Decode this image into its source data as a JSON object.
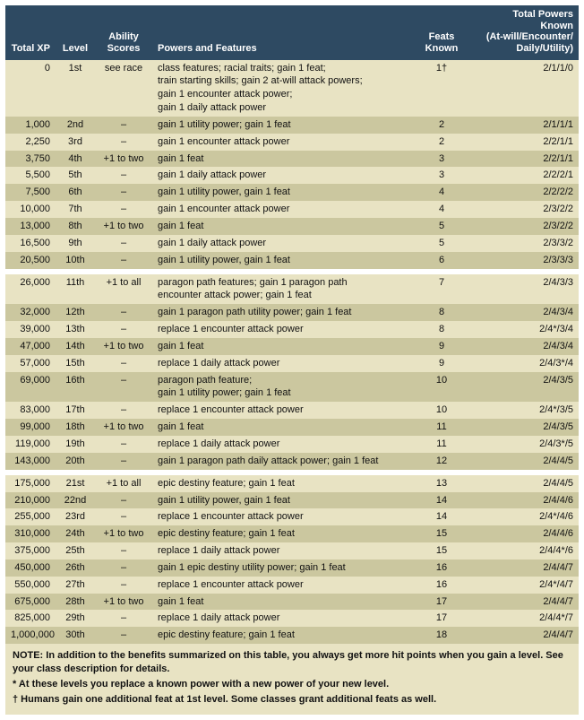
{
  "colors": {
    "header_bg": "#2e4a62",
    "header_text": "#ffffff",
    "row_alt_a": "#e8e3c3",
    "row_alt_b": "#cbc79f",
    "row_gap": "#ffffff",
    "text": "#111111"
  },
  "columns": [
    {
      "key": "xp",
      "label": "Total XP",
      "align": "right"
    },
    {
      "key": "level",
      "label": "Level",
      "align": "center"
    },
    {
      "key": "ability",
      "label": "Ability\nScores",
      "align": "center"
    },
    {
      "key": "features",
      "label": "Powers and Features",
      "align": "left"
    },
    {
      "key": "feats",
      "label": "Feats Known",
      "align": "center"
    },
    {
      "key": "known",
      "label": "Total Powers Known\n(At-will/Encounter/\nDaily/Utility)",
      "align": "right"
    }
  ],
  "tiers": [
    {
      "rows": [
        {
          "xp": "0",
          "level": "1st",
          "ability": "see race",
          "features": "class features; racial traits; gain 1 feat;\ntrain starting skills; gain 2 at-will attack powers;\ngain 1 encounter attack power;\ngain 1 daily attack power",
          "feats": "1†",
          "known": "2/1/1/0"
        },
        {
          "xp": "1,000",
          "level": "2nd",
          "ability": "–",
          "features": "gain 1 utility power; gain 1 feat",
          "feats": "2",
          "known": "2/1/1/1"
        },
        {
          "xp": "2,250",
          "level": "3rd",
          "ability": "–",
          "features": "gain 1 encounter attack power",
          "feats": "2",
          "known": "2/2/1/1"
        },
        {
          "xp": "3,750",
          "level": "4th",
          "ability": "+1 to two",
          "features": "gain 1 feat",
          "feats": "3",
          "known": "2/2/1/1"
        },
        {
          "xp": "5,500",
          "level": "5th",
          "ability": "–",
          "features": "gain 1 daily attack power",
          "feats": "3",
          "known": "2/2/2/1"
        },
        {
          "xp": "7,500",
          "level": "6th",
          "ability": "–",
          "features": "gain 1 utility power, gain 1 feat",
          "feats": "4",
          "known": "2/2/2/2"
        },
        {
          "xp": "10,000",
          "level": "7th",
          "ability": "–",
          "features": "gain 1 encounter attack power",
          "feats": "4",
          "known": "2/3/2/2"
        },
        {
          "xp": "13,000",
          "level": "8th",
          "ability": "+1 to two",
          "features": "gain 1 feat",
          "feats": "5",
          "known": "2/3/2/2"
        },
        {
          "xp": "16,500",
          "level": "9th",
          "ability": "–",
          "features": "gain 1 daily attack power",
          "feats": "5",
          "known": "2/3/3/2"
        },
        {
          "xp": "20,500",
          "level": "10th",
          "ability": "–",
          "features": "gain 1 utility power, gain 1 feat",
          "feats": "6",
          "known": "2/3/3/3"
        }
      ]
    },
    {
      "rows": [
        {
          "xp": "26,000",
          "level": "11th",
          "ability": "+1 to all",
          "features": "paragon path features; gain 1 paragon path\nencounter attack power; gain 1 feat",
          "feats": "7",
          "known": "2/4/3/3"
        },
        {
          "xp": "32,000",
          "level": "12th",
          "ability": "–",
          "features": "gain 1 paragon path utility power; gain 1 feat",
          "feats": "8",
          "known": "2/4/3/4"
        },
        {
          "xp": "39,000",
          "level": "13th",
          "ability": "–",
          "features": "replace 1 encounter attack power",
          "feats": "8",
          "known": "2/4*/3/4"
        },
        {
          "xp": "47,000",
          "level": "14th",
          "ability": "+1 to two",
          "features": "gain 1 feat",
          "feats": "9",
          "known": "2/4/3/4"
        },
        {
          "xp": "57,000",
          "level": "15th",
          "ability": "–",
          "features": "replace 1 daily attack power",
          "feats": "9",
          "known": "2/4/3*/4"
        },
        {
          "xp": "69,000",
          "level": "16th",
          "ability": "–",
          "features": "paragon path feature;\ngain 1 utility power; gain 1 feat",
          "feats": "10",
          "known": "2/4/3/5"
        },
        {
          "xp": "83,000",
          "level": "17th",
          "ability": "–",
          "features": "replace 1 encounter attack power",
          "feats": "10",
          "known": "2/4*/3/5"
        },
        {
          "xp": "99,000",
          "level": "18th",
          "ability": "+1 to two",
          "features": "gain 1 feat",
          "feats": "11",
          "known": "2/4/3/5"
        },
        {
          "xp": "119,000",
          "level": "19th",
          "ability": "–",
          "features": "replace 1 daily attack power",
          "feats": "11",
          "known": "2/4/3*/5"
        },
        {
          "xp": "143,000",
          "level": "20th",
          "ability": "–",
          "features": "gain 1 paragon path daily attack power; gain 1 feat",
          "feats": "12",
          "known": "2/4/4/5"
        }
      ]
    },
    {
      "rows": [
        {
          "xp": "175,000",
          "level": "21st",
          "ability": "+1 to all",
          "features": "epic destiny feature; gain 1 feat",
          "feats": "13",
          "known": "2/4/4/5"
        },
        {
          "xp": "210,000",
          "level": "22nd",
          "ability": "–",
          "features": "gain 1 utility power, gain 1 feat",
          "feats": "14",
          "known": "2/4/4/6"
        },
        {
          "xp": "255,000",
          "level": "23rd",
          "ability": "–",
          "features": "replace 1 encounter attack power",
          "feats": "14",
          "known": "2/4*/4/6"
        },
        {
          "xp": "310,000",
          "level": "24th",
          "ability": "+1 to two",
          "features": "epic destiny feature; gain 1 feat",
          "feats": "15",
          "known": "2/4/4/6"
        },
        {
          "xp": "375,000",
          "level": "25th",
          "ability": "–",
          "features": "replace 1 daily attack power",
          "feats": "15",
          "known": "2/4/4*/6"
        },
        {
          "xp": "450,000",
          "level": "26th",
          "ability": "–",
          "features": "gain 1 epic destiny utility power; gain 1 feat",
          "feats": "16",
          "known": "2/4/4/7"
        },
        {
          "xp": "550,000",
          "level": "27th",
          "ability": "–",
          "features": "replace 1 encounter attack power",
          "feats": "16",
          "known": "2/4*/4/7"
        },
        {
          "xp": "675,000",
          "level": "28th",
          "ability": "+1 to two",
          "features": "gain 1 feat",
          "feats": "17",
          "known": "2/4/4/7"
        },
        {
          "xp": "825,000",
          "level": "29th",
          "ability": "–",
          "features": "replace 1 daily attack power",
          "feats": "17",
          "known": "2/4/4*/7"
        },
        {
          "xp": "1,000,000",
          "level": "30th",
          "ability": "–",
          "features": "epic destiny feature; gain 1 feat",
          "feats": "18",
          "known": "2/4/4/7"
        }
      ]
    }
  ],
  "footnotes": [
    "NOTE: In addition to the benefits summarized on this table, you always get more hit points when you gain a level. See your class description for details.",
    "*  At these levels you replace a known power with a new power of your new level.",
    "† Humans gain one additional feat at 1st level. Some classes grant additional feats as well."
  ]
}
